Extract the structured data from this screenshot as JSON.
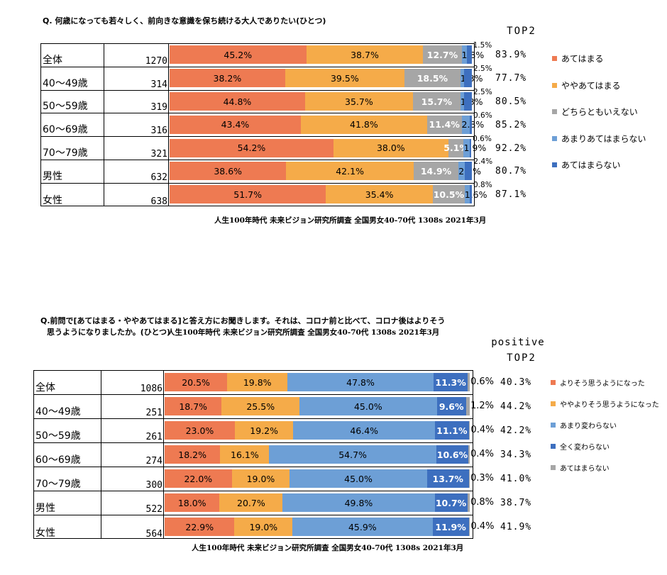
{
  "chart_data": [
    {
      "type": "bar",
      "title": "Q. 何歳になっても若々しく、前向きな意識を保ち続ける大人でありたい(ひとつ)",
      "source": "人生100年時代 未来ビジョン研究所調査 全国男女40-70代 1308s 2021年3月",
      "total_label": "TOP2",
      "categories": [
        "全体",
        "40～49歳",
        "50～59歳",
        "60～69歳",
        "70～79歳",
        "男性",
        "女性"
      ],
      "n": [
        "1270",
        "314",
        "319",
        "316",
        "321",
        "632",
        "638"
      ],
      "series": [
        {
          "name": "あてはまる",
          "color": "#ee7a52",
          "values": [
            45.2,
            38.2,
            44.8,
            43.4,
            54.2,
            38.6,
            51.7
          ],
          "labels": [
            "45.2%",
            "38.2%",
            "44.8%",
            "43.4%",
            "54.2%",
            "38.6%",
            "51.7%"
          ]
        },
        {
          "name": "ややあてはまる",
          "color": "#f5ab49",
          "values": [
            38.7,
            39.5,
            35.7,
            41.8,
            38.0,
            42.1,
            35.4
          ],
          "labels": [
            "38.7%",
            "39.5%",
            "35.7%",
            "41.8%",
            "38.0%",
            "42.1%",
            "35.4%"
          ]
        },
        {
          "name": "どちらともいえない",
          "color": "#a6a6a6",
          "values": [
            12.7,
            18.5,
            15.7,
            11.4,
            5.1,
            14.9,
            10.5
          ],
          "labels": [
            "12.7%",
            "18.5%",
            "15.7%",
            "11.4%",
            "5.1%",
            "14.9%",
            "10.5%"
          ]
        },
        {
          "name": "あまりあてはまらない",
          "color": "#6d9fd6",
          "values": [
            1.8,
            1.3,
            1.3,
            2.8,
            1.9,
            2.1,
            1.6
          ],
          "labels": [
            "1.8%",
            "1.3%",
            "1.3%",
            "2.8%",
            "1.9%",
            "2.1%",
            "1.6%"
          ]
        },
        {
          "name": "あてはまらない",
          "color": "#3d6fbf",
          "values": [
            1.5,
            2.5,
            2.5,
            0.6,
            0.6,
            2.4,
            0.8
          ],
          "labels": [
            "1.5%",
            "2.5%",
            "2.5%",
            "0.6%",
            "0.6%",
            "2.4%",
            "0.8%"
          ]
        }
      ],
      "totals": [
        "83.9%",
        "77.7%",
        "80.5%",
        "85.2%",
        "92.2%",
        "80.7%",
        "87.1%"
      ]
    },
    {
      "type": "bar",
      "title": "Q.前問で[あてはまる・ややあてはまる]と答え方にお聞きします。それは、コロナ前と比べて、コロナ後はよりそう思うようになりましたか。(ひとつ)",
      "title_line1": "Q.前問で[あてはまる・ややあてはまる]と答え方にお聞きします。それは、コロナ前と比べて、コロナ後はよりそう",
      "title_line2": "思うようになりましたか。(ひとつ)",
      "source": "人生100年時代 未来ビジョン研究所調査 全国男女40-70代 1308s 2021年3月",
      "total_label_1": "positive",
      "total_label_2": "TOP2",
      "categories": [
        "全体",
        "40～49歳",
        "50～59歳",
        "60～69歳",
        "70～79歳",
        "男性",
        "女性"
      ],
      "n": [
        "1086",
        "251",
        "261",
        "274",
        "300",
        "522",
        "564"
      ],
      "series": [
        {
          "name": "よりそう思うようになった",
          "color": "#ee7a52",
          "values": [
            20.5,
            18.7,
            23.0,
            18.2,
            22.0,
            18.0,
            22.9
          ],
          "labels": [
            "20.5%",
            "18.7%",
            "23.0%",
            "18.2%",
            "22.0%",
            "18.0%",
            "22.9%"
          ]
        },
        {
          "name": "ややよりそう思うようになった",
          "color": "#f5ab49",
          "values": [
            19.8,
            25.5,
            19.2,
            16.1,
            19.0,
            20.7,
            19.0
          ],
          "labels": [
            "19.8%",
            "25.5%",
            "19.2%",
            "16.1%",
            "19.0%",
            "20.7%",
            "19.0%"
          ]
        },
        {
          "name": "あまり変わらない",
          "color": "#6d9fd6",
          "values": [
            47.8,
            45.0,
            46.4,
            54.7,
            45.0,
            49.8,
            45.9
          ],
          "labels": [
            "47.8%",
            "45.0%",
            "46.4%",
            "54.7%",
            "45.0%",
            "49.8%",
            "45.9%"
          ]
        },
        {
          "name": "全く変わらない",
          "color": "#3d6fbf",
          "values": [
            11.3,
            9.6,
            11.1,
            10.6,
            13.7,
            10.7,
            11.9
          ],
          "labels": [
            "11.3%",
            "9.6%",
            "11.1%",
            "10.6%",
            "13.7%",
            "10.7%",
            "11.9%"
          ]
        },
        {
          "name": "あてはまらない",
          "color": "#a6a6a6",
          "values": [
            0.6,
            1.2,
            0.4,
            0.4,
            0.3,
            0.8,
            0.4
          ],
          "labels": [
            "0.6%",
            "1.2%",
            "0.4%",
            "0.4%",
            "0.3%",
            "0.8%",
            "0.4%"
          ]
        }
      ],
      "totals": [
        "40.3%",
        "44.2%",
        "42.2%",
        "34.3%",
        "41.0%",
        "38.7%",
        "41.9%"
      ]
    }
  ]
}
